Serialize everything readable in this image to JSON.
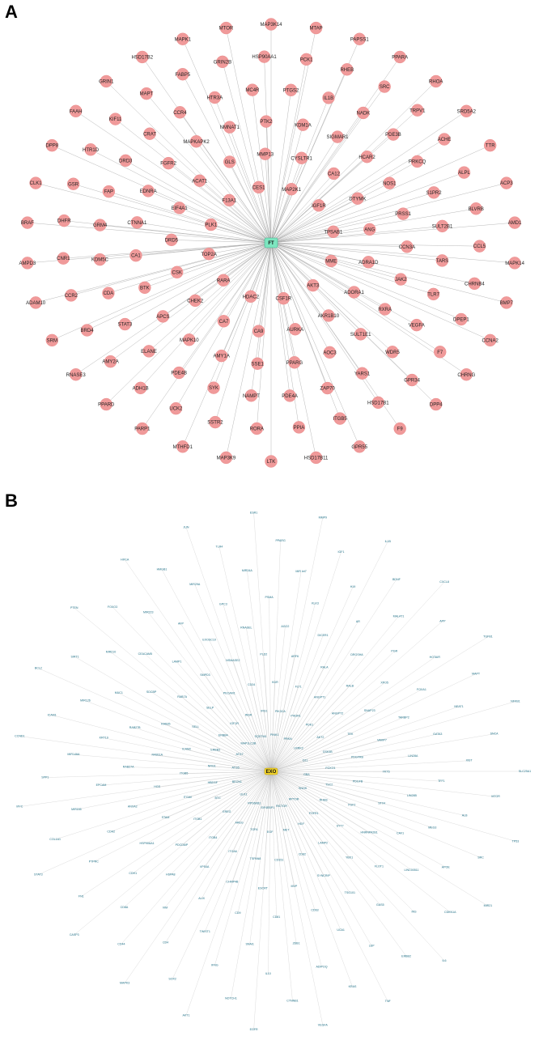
{
  "panel_a": {
    "label": "A",
    "hub": "FT",
    "colors": {
      "node": "#f09a9a",
      "hub": "#7de6c0",
      "edge": "#9a9a9a"
    },
    "nodes": [
      "MAP3K14",
      "MTAP",
      "PAPSS1",
      "PPARA",
      "RHOA",
      "SRD5A2",
      "TTR",
      "ACP3",
      "AMD1",
      "MAPK14",
      "BMP7",
      "CCNA2",
      "CHRNG",
      "DPP4",
      "F9",
      "GPR55",
      "HSD17B11",
      "LTK",
      "MAP3K9",
      "MTHFD1",
      "PARP1",
      "PPARD",
      "RNASE3",
      "SRM",
      "ADAM10",
      "AMPD3",
      "BRAF",
      "CLK1",
      "DPP8",
      "FAAH",
      "GRIN1",
      "HSD17B2",
      "MAPK1",
      "MTOR",
      "PCK1",
      "RHEB",
      "SRC",
      "TRPV1",
      "ACHE",
      "ALPL",
      "BLVRB",
      "CCL5",
      "CHRNB4",
      "DPEP1",
      "F7",
      "GPR34",
      "HSD17B1",
      "ITGB5",
      "PPIA",
      "RORA",
      "SSTR2",
      "UCK2",
      "ADH1B",
      "AMY2A",
      "BRD4",
      "CCR2",
      "CNR1",
      "DHFR",
      "GSR",
      "HTR1D",
      "KIF11",
      "MAPT",
      "FABP5",
      "GRIN2B",
      "HSP90AA1",
      "IL1B",
      "NADK",
      "PDE3B",
      "PRKCQ",
      "S1PR2",
      "SULT2B1",
      "TARS",
      "TLR7",
      "VEGFA",
      "WDR5",
      "YARS1",
      "ZAP70",
      "PDE4A",
      "NAMPT",
      "SYK",
      "PDE4B",
      "ELANE",
      "STAT3",
      "CDA",
      "KDM5C",
      "GRM4",
      "FAP",
      "DRD3",
      "CRAT",
      "CCR4",
      "HTR3A",
      "MC4R",
      "PTGS2",
      "SIGMAR1",
      "HCAR2",
      "NOS1",
      "PRSS1",
      "CCN3A",
      "JAK2",
      "RXRA",
      "SULT1E1",
      "AOC3",
      "PPARG",
      "SSE1",
      "AMY1A",
      "MAPK10",
      "APCS",
      "BTK",
      "CA1",
      "CTNNA1",
      "EDNRA",
      "FGFR2",
      "MAPKAPK2",
      "NMNAT1",
      "PTK2",
      "KDM1A",
      "CA12",
      "DTYMK",
      "ANG",
      "ADRA1D",
      "ADORA1",
      "AKR1B10",
      "AURKA",
      "CA9",
      "CA7",
      "CHEK2",
      "CSK",
      "DRD5",
      "EIF4A1",
      "ACAT1",
      "GLS",
      "MMP13",
      "CYSLTR1",
      "IGF1R",
      "TPSAB1",
      "MME",
      "AKT3",
      "CSF1R",
      "HDAC2",
      "RARA",
      "TOP2A",
      "PLK1",
      "F13A1",
      "CES1",
      "MAP2K1"
    ],
    "edge_note": "All nodes connect to hub"
  },
  "panel_b": {
    "label": "B",
    "hub": "EXO",
    "colors": {
      "label": "#1f6f86",
      "hub": "#f2d32a",
      "edge": "#b8b8b8"
    },
    "nodes": [
      "SLC25A1",
      "TP53",
      "MIR21",
      "IL6",
      "TNF",
      "VEGFA",
      "EGFR",
      "AKT1",
      "MAPK3",
      "CASP3",
      "STAT3",
      "MYC",
      "CCND1",
      "BCL2",
      "PTEN",
      "HIF1A",
      "JUN",
      "ESR1",
      "MMP9",
      "IL1B",
      "CXCL8",
      "TGFB1",
      "NFKB1",
      "MTOR",
      "SRC",
      "CDKN1A",
      "ERBB2",
      "KRAS",
      "CTNNB1",
      "NOTCH1",
      "SOX2",
      "CD44",
      "FN1",
      "COL1A1",
      "SPP1",
      "ICAM1",
      "SIRT1",
      "FOXO3",
      "HMGB1",
      "TLR4",
      "PPARG",
      "IGF1",
      "BDNF",
      "APP",
      "MAPT",
      "SNCA",
      "ALB",
      "APOE",
      "INS",
      "LEP",
      "ADIPOQ",
      "IL10",
      "IFNG",
      "CD4",
      "CD8A",
      "PTPRC",
      "MIR155",
      "MIR146A",
      "MIR126",
      "MIR210",
      "MIR223",
      "MIR29A",
      "MIR34A",
      "MIR let7",
      "H19",
      "MALAT1",
      "HOTAIR",
      "NEAT1",
      "XIST",
      "MEG3",
      "LINC00511",
      "GAS5",
      "UCA1",
      "ZEB1",
      "SNAI1",
      "TWIST1",
      "VIM",
      "CDH1",
      "CDH2",
      "EPCAM",
      "KRT19",
      "MUC1",
      "CEACAM5",
      "AFP",
      "GPC3",
      "PSMA",
      "KLK3",
      "AR",
      "PGR",
      "FOXA1",
      "GATA3",
      "TFF1",
      "CAV1",
      "FLOT1",
      "TSG101",
      "CD63",
      "CD81",
      "CD9",
      "ALIX",
      "HSPA8",
      "HSP90AA1",
      "ANXA2",
      "RAB27A",
      "RAB27B",
      "SDCBP",
      "LAMP1",
      "EXOSC10",
      "RNASEL",
      "AGO2",
      "DICER1",
      "DROSHA",
      "XPO5",
      "TARBP2",
      "LIN28A",
      "LIN28B",
      "HNRNPA2B1",
      "YBX1",
      "SYNCRIP",
      "MVP",
      "ESCRT",
      "CHMP4B",
      "VPS4A",
      "PDCD6IP",
      "STAM",
      "HGS",
      "RAB11A",
      "RAB35",
      "RAB7A",
      "SMPD3",
      "NSMASE2",
      "PLD2",
      "ARF6",
      "RALA",
      "RALB",
      "SNAP23",
      "VAMP7",
      "YKT6",
      "STX4",
      "SYT7",
      "LAMP2",
      "CD82",
      "CD151",
      "TSPAN8",
      "ITGA6",
      "ITGB4",
      "ITGB1",
      "ITGAV",
      "ITGB5",
      "ICAM2",
      "SELL",
      "SELP",
      "PECAM1",
      "CD34",
      "KDR",
      "FLT1",
      "ANGPT1",
      "ANGPT2",
      "TEK",
      "PDGFRB",
      "PDGFB",
      "FGF2",
      "FGFR1",
      "HGF",
      "MET",
      "EGF",
      "TGFA",
      "AREG",
      "EREG",
      "BTC",
      "HBEGF",
      "NRG1",
      "ERBB3",
      "ERBB4",
      "IGF1R",
      "INSR",
      "IRS1",
      "PIK3CA",
      "PIK3R1",
      "PDK1",
      "AKT2",
      "GSK3B",
      "FOXO1",
      "TSC2",
      "RHEB",
      "RPTOR",
      "RICTOR",
      "EIF4EBP1",
      "RPS6KB1",
      "ULK1",
      "BECN1",
      "ATG5",
      "ATG7",
      "MAP1LC3B",
      "SQSTM1",
      "PINK1",
      "PRKN",
      "LRRK2",
      "DJ1",
      "GBA",
      "SNCB"
    ]
  }
}
